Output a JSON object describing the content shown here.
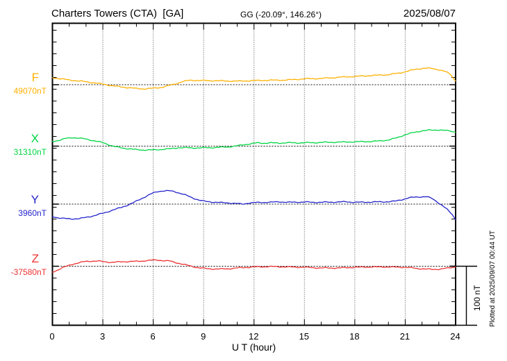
{
  "header": {
    "title": "Charters Towers (CTA)  [GA]",
    "coords": "GG (-20.09°, 146.26°)",
    "date": "2025/08/07"
  },
  "axis": {
    "xlabel": "U T (hour)"
  },
  "scalebar": {
    "label": "100 nT"
  },
  "footer": {
    "plotted_at": "Plotted at 2025/09/07 00:44 UT"
  },
  "chart_data": {
    "type": "line",
    "title": "Charters Towers (CTA) [GA]",
    "station": "Charters Towers",
    "station_code": "CTA",
    "agency": "GA",
    "geographic_coords": "GG (-20.09°, 146.26°)",
    "date": "2025/08/07",
    "xlabel": "U T (hour)",
    "x_range": [
      0,
      24
    ],
    "x_ticks": [
      0,
      3,
      6,
      9,
      12,
      15,
      18,
      21,
      24
    ],
    "grid": "dotted vertical lines every 3 hours, dotted baseline per trace",
    "scale_bar_nT": 100,
    "points_format": "[UT_hour, offset_nT_from_baseline]",
    "series": [
      {
        "name": "F",
        "baseline_label": "49070nT",
        "baseline_nT": 49070,
        "color": "#ffb000",
        "points": [
          [
            0,
            12
          ],
          [
            0.5,
            10
          ],
          [
            1,
            8
          ],
          [
            1.5,
            6.5
          ],
          [
            2,
            5
          ],
          [
            2.5,
            3
          ],
          [
            3,
            1
          ],
          [
            3.5,
            -1.5
          ],
          [
            4,
            -3.5
          ],
          [
            4.5,
            -5
          ],
          [
            5,
            -6.5
          ],
          [
            5.5,
            -7
          ],
          [
            6,
            -6
          ],
          [
            6.5,
            -4.5
          ],
          [
            7,
            -1
          ],
          [
            7.4,
            2
          ],
          [
            7.7,
            5
          ],
          [
            8.2,
            7.5
          ],
          [
            9,
            7
          ],
          [
            10,
            6.5
          ],
          [
            11,
            6
          ],
          [
            11.5,
            6.5
          ],
          [
            12,
            7
          ],
          [
            13,
            7.5
          ],
          [
            14,
            8
          ],
          [
            15,
            10
          ],
          [
            16,
            10.5
          ],
          [
            17,
            12.5
          ],
          [
            18,
            14
          ],
          [
            19,
            15.5
          ],
          [
            20,
            17
          ],
          [
            20.7,
            20
          ],
          [
            21.3,
            24
          ],
          [
            21.8,
            27
          ],
          [
            22.2,
            28
          ],
          [
            22.6,
            27.5
          ],
          [
            23,
            25.5
          ],
          [
            23.4,
            22
          ],
          [
            23.7,
            17.5
          ],
          [
            24,
            6
          ]
        ]
      },
      {
        "name": "X",
        "baseline_label": "31310nT",
        "baseline_nT": 31310,
        "color": "#00d542",
        "points": [
          [
            0,
            8
          ],
          [
            0.4,
            10
          ],
          [
            0.8,
            13
          ],
          [
            1.2,
            14.5
          ],
          [
            1.6,
            13.5
          ],
          [
            2,
            12
          ],
          [
            2.5,
            9
          ],
          [
            3,
            6
          ],
          [
            3.3,
            3
          ],
          [
            3.6,
            0
          ],
          [
            4,
            -2.5
          ],
          [
            4.4,
            -4
          ],
          [
            5,
            -6
          ],
          [
            5.5,
            -6.5
          ],
          [
            6,
            -6.5
          ],
          [
            6.5,
            -5.5
          ],
          [
            7,
            -4.5
          ],
          [
            7.5,
            -2.5
          ],
          [
            8,
            -2.8
          ],
          [
            8.5,
            -3
          ],
          [
            9,
            -2.8
          ],
          [
            9.5,
            -2.5
          ],
          [
            10,
            -2
          ],
          [
            10.5,
            -1.2
          ],
          [
            11,
            0.5
          ],
          [
            11.4,
            2.5
          ],
          [
            11.8,
            4
          ],
          [
            12.2,
            5.5
          ],
          [
            12.6,
            5
          ],
          [
            13,
            5.5
          ],
          [
            13.5,
            5.2
          ],
          [
            14,
            5.8
          ],
          [
            14.5,
            5.5
          ],
          [
            15,
            5.8
          ],
          [
            15.5,
            5.8
          ],
          [
            16,
            6.2
          ],
          [
            16.5,
            6.5
          ],
          [
            17,
            6.8
          ],
          [
            17.5,
            7
          ],
          [
            18,
            7.4
          ],
          [
            18.5,
            7.6
          ],
          [
            19,
            8
          ],
          [
            19.5,
            8.8
          ],
          [
            20,
            10.5
          ],
          [
            20.5,
            14
          ],
          [
            21,
            19.5
          ],
          [
            21.5,
            23
          ],
          [
            22,
            26
          ],
          [
            22.4,
            27
          ],
          [
            23,
            27.5
          ],
          [
            23.4,
            26.5
          ],
          [
            23.7,
            25.5
          ],
          [
            24,
            23.5
          ]
        ]
      },
      {
        "name": "Y",
        "baseline_label": "3960nT",
        "baseline_nT": 3960,
        "color": "#2323cc",
        "points": [
          [
            0,
            -21
          ],
          [
            0.4,
            -23.5
          ],
          [
            0.8,
            -24.7
          ],
          [
            1.2,
            -25
          ],
          [
            1.6,
            -24.7
          ],
          [
            2,
            -22.5
          ],
          [
            2.5,
            -19.5
          ],
          [
            3,
            -15.5
          ],
          [
            3.5,
            -11
          ],
          [
            4,
            -6.5
          ],
          [
            4.4,
            -2.5
          ],
          [
            4.8,
            2
          ],
          [
            5.2,
            8
          ],
          [
            5.6,
            13.5
          ],
          [
            6,
            19
          ],
          [
            6.3,
            21.5
          ],
          [
            6.6,
            22.4
          ],
          [
            7,
            22.4
          ],
          [
            7.3,
            21
          ],
          [
            7.7,
            17.5
          ],
          [
            8,
            14.5
          ],
          [
            8.3,
            11
          ],
          [
            8.7,
            7
          ],
          [
            9,
            5
          ],
          [
            9.5,
            3.5
          ],
          [
            10,
            2.5
          ],
          [
            10.5,
            2
          ],
          [
            11,
            0.8
          ],
          [
            11.3,
            0
          ],
          [
            11.7,
            1.8
          ],
          [
            12,
            2.5
          ],
          [
            12.5,
            3
          ],
          [
            13,
            3
          ],
          [
            13.5,
            4
          ],
          [
            14,
            3
          ],
          [
            14.5,
            3.3
          ],
          [
            15,
            3.5
          ],
          [
            15.5,
            3
          ],
          [
            16,
            3
          ],
          [
            16.5,
            3.3
          ],
          [
            17,
            3.5
          ],
          [
            17.5,
            4
          ],
          [
            18,
            3
          ],
          [
            18.5,
            3.2
          ],
          [
            19,
            3.5
          ],
          [
            19.5,
            3.8
          ],
          [
            20,
            4
          ],
          [
            20.4,
            5
          ],
          [
            20.8,
            7.5
          ],
          [
            21.2,
            10.5
          ],
          [
            21.6,
            12
          ],
          [
            22,
            12.4
          ],
          [
            22.3,
            12.4
          ],
          [
            22.6,
            9.5
          ],
          [
            22.9,
            4
          ],
          [
            23.2,
            -2.5
          ],
          [
            23.5,
            -9
          ],
          [
            23.8,
            -17.5
          ],
          [
            24,
            -26.5
          ]
        ]
      },
      {
        "name": "Z",
        "baseline_label": "-37580nT",
        "baseline_nT": -37580,
        "color": "#ee3030",
        "points": [
          [
            0,
            -10
          ],
          [
            0.3,
            -6.5
          ],
          [
            0.6,
            -2.5
          ],
          [
            0.9,
            0.6
          ],
          [
            1.2,
            3.5
          ],
          [
            1.6,
            6
          ],
          [
            2,
            8.2
          ],
          [
            2.4,
            8.8
          ],
          [
            2.8,
            8.5
          ],
          [
            3.2,
            7.5
          ],
          [
            3.5,
            6.5
          ],
          [
            3.8,
            7
          ],
          [
            4.2,
            7.8
          ],
          [
            4.6,
            8
          ],
          [
            5,
            8.2
          ],
          [
            5.4,
            9
          ],
          [
            5.8,
            10
          ],
          [
            6.2,
            10.6
          ],
          [
            6.6,
            9.5
          ],
          [
            7,
            8.8
          ],
          [
            7.3,
            6.5
          ],
          [
            7.6,
            4.5
          ],
          [
            7.9,
            2.5
          ],
          [
            8.2,
            0.5
          ],
          [
            8.5,
            -1.5
          ],
          [
            8.8,
            -2.9
          ],
          [
            9.2,
            -4
          ],
          [
            9.6,
            -4.7
          ],
          [
            10,
            -4.7
          ],
          [
            10.5,
            -4.2
          ],
          [
            11,
            -2.9
          ],
          [
            11.5,
            -2
          ],
          [
            12,
            -1.2
          ],
          [
            12.5,
            -0.8
          ],
          [
            13,
            -0.6
          ],
          [
            13.5,
            -0.8
          ],
          [
            14,
            -1.2
          ],
          [
            14.5,
            -1.5
          ],
          [
            15,
            -1.8
          ],
          [
            15.5,
            -2.4
          ],
          [
            16,
            -2.9
          ],
          [
            16.5,
            -2.9
          ],
          [
            17,
            -2.9
          ],
          [
            17.5,
            -2.4
          ],
          [
            18,
            -1.8
          ],
          [
            18.5,
            -1.5
          ],
          [
            19,
            -1.2
          ],
          [
            19.5,
            -1.2
          ],
          [
            20,
            -1.2
          ],
          [
            20.5,
            -1.5
          ],
          [
            21,
            -1.8
          ],
          [
            21.4,
            -2.8
          ],
          [
            21.8,
            -4
          ],
          [
            22.2,
            -4.7
          ],
          [
            22.6,
            -5.3
          ],
          [
            23,
            -5
          ],
          [
            23.3,
            -4.1
          ],
          [
            23.7,
            -2.5
          ],
          [
            24,
            -1.2
          ]
        ]
      }
    ]
  }
}
